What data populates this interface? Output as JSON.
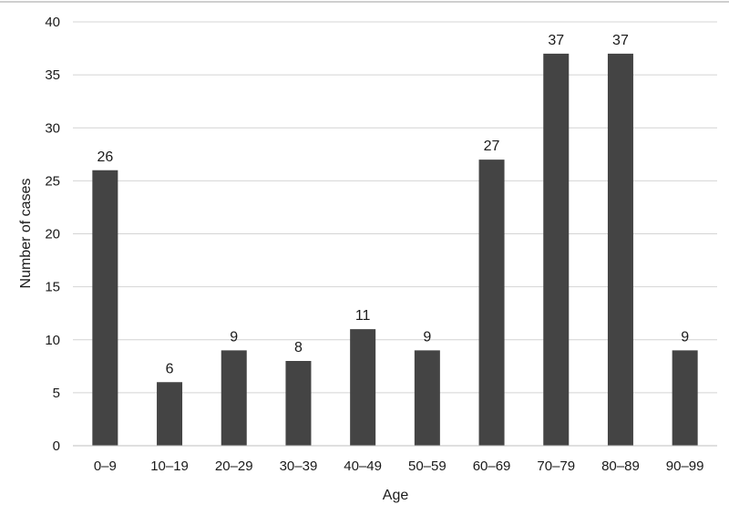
{
  "chart_data": {
    "type": "bar",
    "title": "",
    "xlabel": "Age",
    "ylabel": "Number of cases",
    "categories": [
      "0–9",
      "10–19",
      "20–29",
      "30–39",
      "40–49",
      "50–59",
      "60–69",
      "70–79",
      "80–89",
      "90–99"
    ],
    "values": [
      26,
      6,
      9,
      8,
      11,
      9,
      27,
      37,
      37,
      9
    ],
    "ylim": [
      0,
      40
    ],
    "yticks": [
      0,
      5,
      10,
      15,
      20,
      25,
      30,
      35,
      40
    ],
    "grid": true,
    "legend": "none",
    "bar_color": "#444444",
    "grid_color": "#d4d4d4"
  }
}
